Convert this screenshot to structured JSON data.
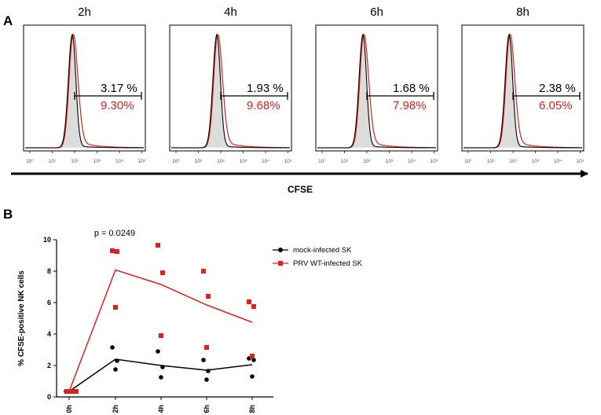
{
  "panelA": {
    "label": "A",
    "xlabel": "CFSE",
    "tick_labels": [
      "10°",
      "10¹",
      "10²",
      "10³",
      "10⁴",
      "10⁵"
    ],
    "histograms": [
      {
        "time": "2h",
        "mock_pct": "3.17 %",
        "prv_pct": "9.30%"
      },
      {
        "time": "4h",
        "mock_pct": "1.93 %",
        "prv_pct": "9.68%"
      },
      {
        "time": "6h",
        "mock_pct": "1.68 %",
        "prv_pct": "7.98%"
      },
      {
        "time": "8h",
        "mock_pct": "2.38 %",
        "prv_pct": "6.05%"
      }
    ],
    "colors": {
      "mock": "#000000",
      "prv": "#e0201b",
      "fill": "#dcdcdc"
    }
  },
  "panelB": {
    "label": "B",
    "p_value": "p = 0.0249"
  },
  "chart_data": {
    "type": "scatter",
    "title": "",
    "xlabel": "",
    "ylabel": "% CFSE-positive NK cells",
    "categories": [
      "0h",
      "2h",
      "4h",
      "6h",
      "8h"
    ],
    "ylim": [
      0,
      10
    ],
    "yticks": [
      "0",
      "2",
      "4",
      "6",
      "8",
      "10"
    ],
    "series": [
      {
        "name": "mock-infected SK",
        "color": "#000000",
        "marker": "circle",
        "points": [
          [
            0,
            0.35
          ],
          [
            0,
            0.35
          ],
          [
            0,
            0.35
          ],
          [
            1,
            3.15
          ],
          [
            1,
            2.3
          ],
          [
            1,
            1.75
          ],
          [
            2,
            2.9
          ],
          [
            2,
            1.9
          ],
          [
            2,
            1.25
          ],
          [
            3,
            2.35
          ],
          [
            3,
            1.65
          ],
          [
            3,
            1.1
          ],
          [
            4,
            2.45
          ],
          [
            4,
            2.35
          ],
          [
            4,
            1.3
          ]
        ],
        "means": [
          0.35,
          2.4,
          2.0,
          1.7,
          2.05
        ]
      },
      {
        "name": "PRV WT-infected SK",
        "color": "#e0201b",
        "marker": "square",
        "points": [
          [
            0,
            0.35
          ],
          [
            0,
            0.35
          ],
          [
            0,
            0.35
          ],
          [
            1,
            9.3
          ],
          [
            1,
            9.25
          ],
          [
            1,
            5.7
          ],
          [
            2,
            9.65
          ],
          [
            2,
            7.9
          ],
          [
            2,
            3.9
          ],
          [
            3,
            8.0
          ],
          [
            3,
            6.4
          ],
          [
            3,
            3.15
          ],
          [
            4,
            6.05
          ],
          [
            4,
            5.75
          ],
          [
            4,
            2.6
          ]
        ],
        "means": [
          0.35,
          8.08,
          7.15,
          5.85,
          4.75
        ]
      }
    ]
  }
}
